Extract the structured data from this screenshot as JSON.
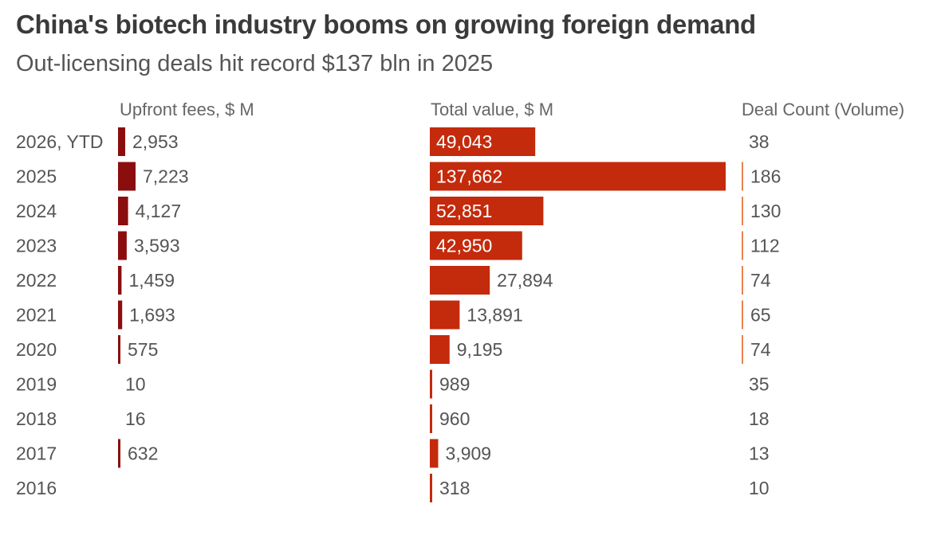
{
  "title": "China's biotech industry booms on growing foreign demand",
  "subtitle": "Out-licensing deals hit record $137 bln in 2025",
  "colors": {
    "upfront_bar": "#8b0e0e",
    "total_bar": "#c42a0c",
    "count_bar": "#e9814f",
    "background": "#ffffff"
  },
  "chart_data": {
    "type": "bar",
    "orientation": "horizontal",
    "categories": [
      "2026, YTD",
      "2025",
      "2024",
      "2023",
      "2022",
      "2021",
      "2020",
      "2019",
      "2018",
      "2017",
      "2016"
    ],
    "series": [
      {
        "name": "Upfront fees, $ M",
        "values": [
          2953,
          7223,
          4127,
          3593,
          1459,
          1693,
          575,
          10,
          16,
          632,
          null
        ],
        "labels": [
          "2,953",
          "7,223",
          "4,127",
          "3,593",
          "1,459",
          "1,693",
          "575",
          "10",
          "16",
          "632",
          ""
        ]
      },
      {
        "name": "Total value, $ M",
        "values": [
          49043,
          137662,
          52851,
          42950,
          27894,
          13891,
          9195,
          989,
          960,
          3909,
          318
        ],
        "labels": [
          "49,043",
          "137,662",
          "52,851",
          "42,950",
          "27,894",
          "13,891",
          "9,195",
          "989",
          "960",
          "3,909",
          "318"
        ]
      },
      {
        "name": "Deal Count (Volume)",
        "values": [
          38,
          186,
          130,
          112,
          74,
          65,
          74,
          35,
          18,
          13,
          10
        ],
        "labels": [
          "38",
          "186",
          "130",
          "112",
          "74",
          "65",
          "74",
          "35",
          "18",
          "13",
          "10"
        ]
      }
    ]
  }
}
